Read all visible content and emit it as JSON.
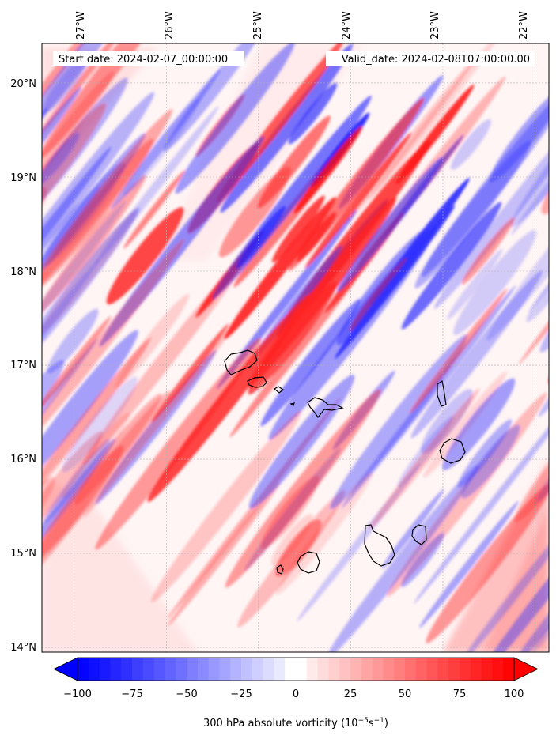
{
  "header": {
    "start_date": "Start date: 2024-02-07_00:00:00",
    "valid_date": "Valid_date: 2024-02-08T07:00:00.00"
  },
  "map": {
    "lon_labels": [
      "27°W",
      "26°W",
      "25°W",
      "24°W",
      "23°W",
      "22°W"
    ],
    "lat_labels": [
      "20°N",
      "19°N",
      "18°N",
      "17°N",
      "16°N",
      "15°N",
      "14°N"
    ],
    "lon_values": [
      -27,
      -26,
      -25,
      -24,
      -23,
      -22
    ],
    "lat_values": [
      20,
      19,
      18,
      17,
      16,
      15,
      14
    ],
    "lon_range": [
      -27.35,
      -21.85
    ],
    "lat_range": [
      13.95,
      20.42
    ],
    "islands": [
      "Santo Antão",
      "São Vicente",
      "Santa Luzia",
      "São Nicolau",
      "Sal",
      "Boa Vista",
      "Maio",
      "Santiago",
      "Fogo",
      "Brava"
    ]
  },
  "colorbar": {
    "ticks": [
      "−100",
      "−75",
      "−50",
      "−25",
      "0",
      "25",
      "50",
      "75",
      "100"
    ],
    "tick_values": [
      -100,
      -75,
      -50,
      -25,
      0,
      25,
      50,
      75,
      100
    ],
    "range": [
      -100,
      100
    ],
    "label": "300 hPa absolute vorticity (10",
    "label_sup1": "−5",
    "label_mid": "s",
    "label_sup2": "−1",
    "label_end": ")",
    "neg_color": "#0000ff",
    "pos_color": "#ff0000"
  }
}
